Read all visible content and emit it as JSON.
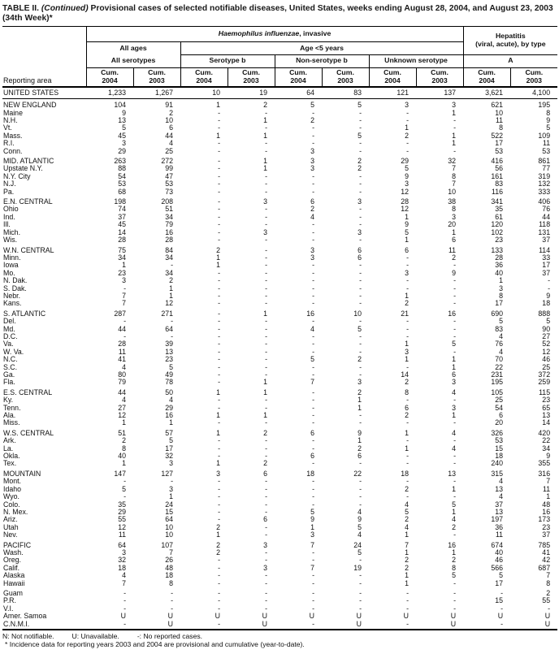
{
  "title": {
    "table_label": "TABLE II.",
    "continued": "(Continued)",
    "text": "Provisional cases of selected notifiable diseases, United States, weeks ending August 28, 2004, and August 23, 2003",
    "week_line": "(34th Week)*"
  },
  "header": {
    "reporting_area": "Reporting area",
    "main_group_italic": "Haemophilus influenzae",
    "main_group_rest": ", invasive",
    "hepatitis_line1": "Hepatitis",
    "hepatitis_line2": "(viral, acute), by type",
    "all_ages": "All ages",
    "age_under5": "Age <5 years",
    "all_serotypes": "All serotypes",
    "serotype_b": "Serotype b",
    "non_serotype_b": "Non-serotype b",
    "unknown_serotype": "Unknown serotype",
    "hepatitis_a": "A",
    "cum": "Cum.",
    "year_2004": "2004",
    "year_2003": "2003"
  },
  "table": {
    "rows": [
      {
        "area": "UNITED STATES",
        "type": "total",
        "gap": false,
        "values": [
          "1,233",
          "1,267",
          "10",
          "19",
          "64",
          "83",
          "121",
          "137",
          "3,621",
          "4,100"
        ]
      },
      {
        "area": "NEW ENGLAND",
        "type": "region",
        "gap": true,
        "values": [
          "104",
          "91",
          "1",
          "2",
          "5",
          "5",
          "3",
          "3",
          "621",
          "195"
        ]
      },
      {
        "area": "Maine",
        "type": "state",
        "gap": false,
        "values": [
          "9",
          "2",
          "-",
          "-",
          "-",
          "-",
          "-",
          "1",
          "10",
          "8"
        ]
      },
      {
        "area": "N.H.",
        "type": "state",
        "gap": false,
        "values": [
          "13",
          "10",
          "-",
          "1",
          "2",
          "-",
          "-",
          "-",
          "11",
          "9"
        ]
      },
      {
        "area": "Vt.",
        "type": "state",
        "gap": false,
        "values": [
          "5",
          "6",
          "-",
          "-",
          "-",
          "-",
          "1",
          "-",
          "8",
          "5"
        ]
      },
      {
        "area": "Mass.",
        "type": "state",
        "gap": false,
        "values": [
          "45",
          "44",
          "1",
          "1",
          "-",
          "5",
          "2",
          "1",
          "522",
          "109"
        ]
      },
      {
        "area": "R.I.",
        "type": "state",
        "gap": false,
        "values": [
          "3",
          "4",
          "-",
          "-",
          "-",
          "-",
          "-",
          "1",
          "17",
          "11"
        ]
      },
      {
        "area": "Conn.",
        "type": "state",
        "gap": false,
        "values": [
          "29",
          "25",
          "-",
          "-",
          "3",
          "-",
          "-",
          "-",
          "53",
          "53"
        ]
      },
      {
        "area": "MID. ATLANTIC",
        "type": "region",
        "gap": true,
        "values": [
          "263",
          "272",
          "-",
          "1",
          "3",
          "2",
          "29",
          "32",
          "416",
          "861"
        ]
      },
      {
        "area": "Upstate N.Y.",
        "type": "state",
        "gap": false,
        "values": [
          "88",
          "99",
          "-",
          "1",
          "3",
          "2",
          "5",
          "7",
          "56",
          "77"
        ]
      },
      {
        "area": "N.Y. City",
        "type": "state",
        "gap": false,
        "values": [
          "54",
          "47",
          "-",
          "-",
          "-",
          "-",
          "9",
          "8",
          "161",
          "319"
        ]
      },
      {
        "area": "N.J.",
        "type": "state",
        "gap": false,
        "values": [
          "53",
          "53",
          "-",
          "-",
          "-",
          "-",
          "3",
          "7",
          "83",
          "132"
        ]
      },
      {
        "area": "Pa.",
        "type": "state",
        "gap": false,
        "values": [
          "68",
          "73",
          "-",
          "-",
          "-",
          "-",
          "12",
          "10",
          "116",
          "333"
        ]
      },
      {
        "area": "E.N. CENTRAL",
        "type": "region",
        "gap": true,
        "values": [
          "198",
          "208",
          "-",
          "3",
          "6",
          "3",
          "28",
          "38",
          "341",
          "406"
        ]
      },
      {
        "area": "Ohio",
        "type": "state",
        "gap": false,
        "values": [
          "74",
          "51",
          "-",
          "-",
          "2",
          "-",
          "12",
          "8",
          "35",
          "76"
        ]
      },
      {
        "area": "Ind.",
        "type": "state",
        "gap": false,
        "values": [
          "37",
          "34",
          "-",
          "-",
          "4",
          "-",
          "1",
          "3",
          "61",
          "44"
        ]
      },
      {
        "area": "Ill.",
        "type": "state",
        "gap": false,
        "values": [
          "45",
          "79",
          "-",
          "-",
          "-",
          "-",
          "9",
          "20",
          "120",
          "118"
        ]
      },
      {
        "area": "Mich.",
        "type": "state",
        "gap": false,
        "values": [
          "14",
          "16",
          "-",
          "3",
          "-",
          "3",
          "5",
          "1",
          "102",
          "131"
        ]
      },
      {
        "area": "Wis.",
        "type": "state",
        "gap": false,
        "values": [
          "28",
          "28",
          "-",
          "-",
          "-",
          "-",
          "1",
          "6",
          "23",
          "37"
        ]
      },
      {
        "area": "W.N. CENTRAL",
        "type": "region",
        "gap": true,
        "values": [
          "75",
          "84",
          "2",
          "-",
          "3",
          "6",
          "6",
          "11",
          "133",
          "114"
        ]
      },
      {
        "area": "Minn.",
        "type": "state",
        "gap": false,
        "values": [
          "34",
          "34",
          "1",
          "-",
          "3",
          "6",
          "-",
          "2",
          "28",
          "33"
        ]
      },
      {
        "area": "Iowa",
        "type": "state",
        "gap": false,
        "values": [
          "1",
          "-",
          "1",
          "-",
          "-",
          "-",
          "-",
          "-",
          "36",
          "17"
        ]
      },
      {
        "area": "Mo.",
        "type": "state",
        "gap": false,
        "values": [
          "23",
          "34",
          "-",
          "-",
          "-",
          "-",
          "3",
          "9",
          "40",
          "37"
        ]
      },
      {
        "area": "N. Dak.",
        "type": "state",
        "gap": false,
        "values": [
          "3",
          "2",
          "-",
          "-",
          "-",
          "-",
          "-",
          "-",
          "1",
          "-"
        ]
      },
      {
        "area": "S. Dak.",
        "type": "state",
        "gap": false,
        "values": [
          "-",
          "1",
          "-",
          "-",
          "-",
          "-",
          "-",
          "-",
          "3",
          "-"
        ]
      },
      {
        "area": "Nebr.",
        "type": "state",
        "gap": false,
        "values": [
          "7",
          "1",
          "-",
          "-",
          "-",
          "-",
          "1",
          "-",
          "8",
          "9"
        ]
      },
      {
        "area": "Kans.",
        "type": "state",
        "gap": false,
        "values": [
          "7",
          "12",
          "-",
          "-",
          "-",
          "-",
          "2",
          "-",
          "17",
          "18"
        ]
      },
      {
        "area": "S. ATLANTIC",
        "type": "region",
        "gap": true,
        "values": [
          "287",
          "271",
          "-",
          "1",
          "16",
          "10",
          "21",
          "16",
          "690",
          "888"
        ]
      },
      {
        "area": "Del.",
        "type": "state",
        "gap": false,
        "values": [
          "-",
          "-",
          "-",
          "-",
          "-",
          "-",
          "-",
          "-",
          "5",
          "5"
        ]
      },
      {
        "area": "Md.",
        "type": "state",
        "gap": false,
        "values": [
          "44",
          "64",
          "-",
          "-",
          "4",
          "5",
          "-",
          "-",
          "83",
          "90"
        ]
      },
      {
        "area": "D.C.",
        "type": "state",
        "gap": false,
        "values": [
          "-",
          "-",
          "-",
          "-",
          "-",
          "-",
          "-",
          "-",
          "4",
          "27"
        ]
      },
      {
        "area": "Va.",
        "type": "state",
        "gap": false,
        "values": [
          "28",
          "39",
          "-",
          "-",
          "-",
          "-",
          "1",
          "5",
          "76",
          "52"
        ]
      },
      {
        "area": "W. Va.",
        "type": "state",
        "gap": false,
        "values": [
          "11",
          "13",
          "-",
          "-",
          "-",
          "-",
          "3",
          "-",
          "4",
          "12"
        ]
      },
      {
        "area": "N.C.",
        "type": "state",
        "gap": false,
        "values": [
          "41",
          "23",
          "-",
          "-",
          "5",
          "2",
          "1",
          "1",
          "70",
          "46"
        ]
      },
      {
        "area": "S.C.",
        "type": "state",
        "gap": false,
        "values": [
          "4",
          "5",
          "-",
          "-",
          "-",
          "-",
          "-",
          "1",
          "22",
          "25"
        ]
      },
      {
        "area": "Ga.",
        "type": "state",
        "gap": false,
        "values": [
          "80",
          "49",
          "-",
          "-",
          "-",
          "-",
          "14",
          "6",
          "231",
          "372"
        ]
      },
      {
        "area": "Fla.",
        "type": "state",
        "gap": false,
        "values": [
          "79",
          "78",
          "-",
          "1",
          "7",
          "3",
          "2",
          "3",
          "195",
          "259"
        ]
      },
      {
        "area": "E.S. CENTRAL",
        "type": "region",
        "gap": true,
        "values": [
          "44",
          "50",
          "1",
          "1",
          "-",
          "2",
          "8",
          "4",
          "105",
          "115"
        ]
      },
      {
        "area": "Ky.",
        "type": "state",
        "gap": false,
        "values": [
          "4",
          "4",
          "-",
          "-",
          "-",
          "1",
          "-",
          "-",
          "25",
          "23"
        ]
      },
      {
        "area": "Tenn.",
        "type": "state",
        "gap": false,
        "values": [
          "27",
          "29",
          "-",
          "-",
          "-",
          "1",
          "6",
          "3",
          "54",
          "65"
        ]
      },
      {
        "area": "Ala.",
        "type": "state",
        "gap": false,
        "values": [
          "12",
          "16",
          "1",
          "1",
          "-",
          "-",
          "2",
          "1",
          "6",
          "13"
        ]
      },
      {
        "area": "Miss.",
        "type": "state",
        "gap": false,
        "values": [
          "1",
          "1",
          "-",
          "-",
          "-",
          "-",
          "-",
          "-",
          "20",
          "14"
        ]
      },
      {
        "area": "W.S. CENTRAL",
        "type": "region",
        "gap": true,
        "values": [
          "51",
          "57",
          "1",
          "2",
          "6",
          "9",
          "1",
          "4",
          "326",
          "420"
        ]
      },
      {
        "area": "Ark.",
        "type": "state",
        "gap": false,
        "values": [
          "2",
          "5",
          "-",
          "-",
          "-",
          "1",
          "-",
          "-",
          "53",
          "22"
        ]
      },
      {
        "area": "La.",
        "type": "state",
        "gap": false,
        "values": [
          "8",
          "17",
          "-",
          "-",
          "-",
          "2",
          "1",
          "4",
          "15",
          "34"
        ]
      },
      {
        "area": "Okla.",
        "type": "state",
        "gap": false,
        "values": [
          "40",
          "32",
          "-",
          "-",
          "6",
          "6",
          "-",
          "-",
          "18",
          "9"
        ]
      },
      {
        "area": "Tex.",
        "type": "state",
        "gap": false,
        "values": [
          "1",
          "3",
          "1",
          "2",
          "-",
          "-",
          "-",
          "-",
          "240",
          "355"
        ]
      },
      {
        "area": "MOUNTAIN",
        "type": "region",
        "gap": true,
        "values": [
          "147",
          "127",
          "3",
          "6",
          "18",
          "22",
          "18",
          "13",
          "315",
          "316"
        ]
      },
      {
        "area": "Mont.",
        "type": "state",
        "gap": false,
        "values": [
          "-",
          "-",
          "-",
          "-",
          "-",
          "-",
          "-",
          "-",
          "4",
          "7"
        ]
      },
      {
        "area": "Idaho",
        "type": "state",
        "gap": false,
        "values": [
          "5",
          "3",
          "-",
          "-",
          "-",
          "-",
          "2",
          "1",
          "13",
          "11"
        ]
      },
      {
        "area": "Wyo.",
        "type": "state",
        "gap": false,
        "values": [
          "-",
          "1",
          "-",
          "-",
          "-",
          "-",
          "-",
          "-",
          "4",
          "1"
        ]
      },
      {
        "area": "Colo.",
        "type": "state",
        "gap": false,
        "values": [
          "35",
          "24",
          "-",
          "-",
          "-",
          "-",
          "4",
          "5",
          "37",
          "48"
        ]
      },
      {
        "area": "N. Mex.",
        "type": "state",
        "gap": false,
        "values": [
          "29",
          "15",
          "-",
          "-",
          "5",
          "4",
          "5",
          "1",
          "13",
          "16"
        ]
      },
      {
        "area": "Ariz.",
        "type": "state",
        "gap": false,
        "values": [
          "55",
          "64",
          "-",
          "6",
          "9",
          "9",
          "2",
          "4",
          "197",
          "173"
        ]
      },
      {
        "area": "Utah",
        "type": "state",
        "gap": false,
        "values": [
          "12",
          "10",
          "2",
          "-",
          "1",
          "5",
          "4",
          "2",
          "36",
          "23"
        ]
      },
      {
        "area": "Nev.",
        "type": "state",
        "gap": false,
        "values": [
          "11",
          "10",
          "1",
          "-",
          "3",
          "4",
          "1",
          "-",
          "11",
          "37"
        ]
      },
      {
        "area": "PACIFIC",
        "type": "region",
        "gap": true,
        "values": [
          "64",
          "107",
          "2",
          "3",
          "7",
          "24",
          "7",
          "16",
          "674",
          "785"
        ]
      },
      {
        "area": "Wash.",
        "type": "state",
        "gap": false,
        "values": [
          "3",
          "7",
          "2",
          "-",
          "-",
          "5",
          "1",
          "1",
          "40",
          "41"
        ]
      },
      {
        "area": "Oreg.",
        "type": "state",
        "gap": false,
        "values": [
          "32",
          "26",
          "-",
          "-",
          "-",
          "-",
          "2",
          "2",
          "46",
          "42"
        ]
      },
      {
        "area": "Calif.",
        "type": "state",
        "gap": false,
        "values": [
          "18",
          "48",
          "-",
          "3",
          "7",
          "19",
          "2",
          "8",
          "566",
          "687"
        ]
      },
      {
        "area": "Alaska",
        "type": "state",
        "gap": false,
        "values": [
          "4",
          "18",
          "-",
          "-",
          "-",
          "-",
          "1",
          "5",
          "5",
          "7"
        ]
      },
      {
        "area": "Hawaii",
        "type": "state",
        "gap": false,
        "values": [
          "7",
          "8",
          "-",
          "-",
          "-",
          "-",
          "1",
          "-",
          "17",
          "8"
        ]
      },
      {
        "area": "Guam",
        "type": "state",
        "gap": true,
        "values": [
          "-",
          "-",
          "-",
          "-",
          "-",
          "-",
          "-",
          "-",
          "-",
          "2"
        ]
      },
      {
        "area": "P.R.",
        "type": "state",
        "gap": false,
        "values": [
          "-",
          "-",
          "-",
          "-",
          "-",
          "-",
          "-",
          "-",
          "15",
          "55"
        ]
      },
      {
        "area": "V.I.",
        "type": "state",
        "gap": false,
        "values": [
          "-",
          "-",
          "-",
          "-",
          "-",
          "-",
          "-",
          "-",
          "-",
          "-"
        ]
      },
      {
        "area": "Amer. Samoa",
        "type": "state",
        "gap": false,
        "values": [
          "U",
          "U",
          "U",
          "U",
          "U",
          "U",
          "U",
          "U",
          "U",
          "U"
        ]
      },
      {
        "area": "C.N.M.I.",
        "type": "state",
        "gap": false,
        "values": [
          "-",
          "U",
          "-",
          "U",
          "-",
          "U",
          "-",
          "U",
          "-",
          "U"
        ]
      }
    ]
  },
  "footnotes": {
    "legend_n": "N: Not notifiable.",
    "legend_u": "U: Unavailable.",
    "legend_dash": "-: No reported cases.",
    "note": "* Incidence data for reporting years 2003 and 2004 are provisional and cumulative (year-to-date)."
  }
}
